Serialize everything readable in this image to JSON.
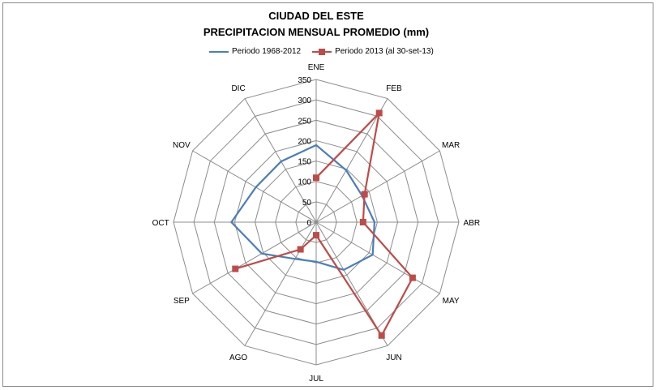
{
  "chart_data": {
    "type": "radar",
    "title": "CIUDAD DEL ESTE",
    "subtitle": "PRECIPITACION MENSUAL PROMEDIO  (mm)",
    "categories": [
      "ENE",
      "FEB",
      "MAR",
      "ABR",
      "MAY",
      "JUN",
      "JUL",
      "AGO",
      "SEP",
      "OCT",
      "NOV",
      "DIC"
    ],
    "rlim": [
      0,
      350
    ],
    "ticks": [
      "0",
      "50",
      "100",
      "150",
      "200",
      "250",
      "300",
      "350"
    ],
    "grid": true,
    "legend_position": "top",
    "series": [
      {
        "name": "Periodo 1968-2012",
        "color": "#4A7EBB",
        "marker": "none",
        "values": [
          189,
          147,
          130,
          143,
          160,
          135,
          97,
          104,
          154,
          208,
          171,
          172
        ]
      },
      {
        "name": "Periodo 2013 (al 30-set-13)",
        "color": "#BE4B48",
        "marker": "square",
        "values": [
          109,
          309,
          137,
          115,
          273,
          321,
          32,
          77,
          229,
          null,
          null,
          null
        ]
      }
    ]
  }
}
